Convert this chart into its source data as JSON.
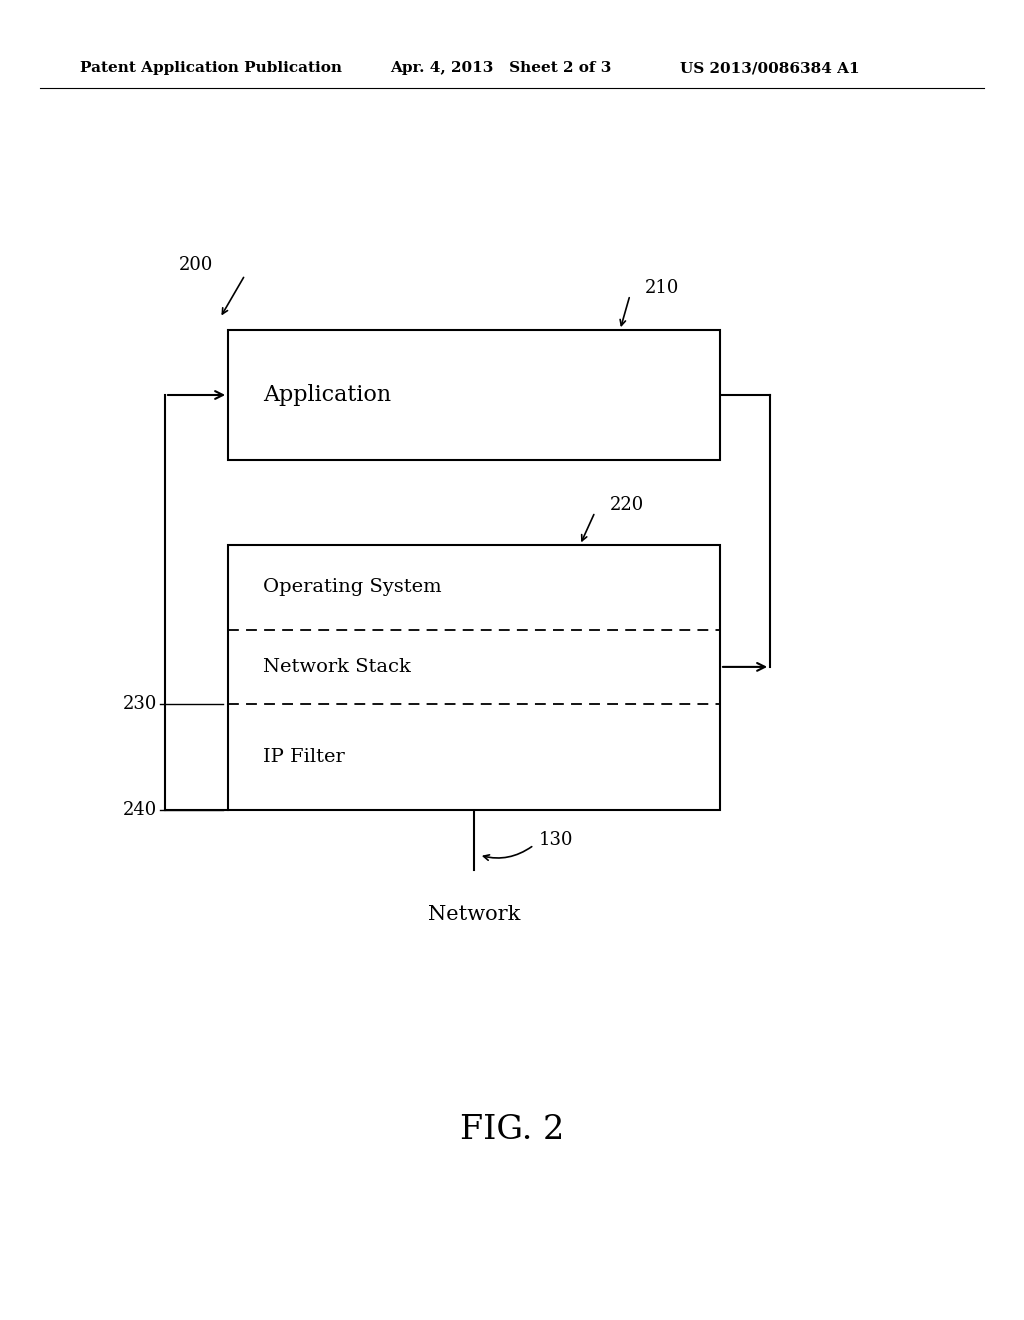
{
  "bg_color": "#ffffff",
  "header_left": "Patent Application Publication",
  "header_mid": "Apr. 4, 2013   Sheet 2 of 3",
  "header_right": "US 2013/0086384 A1",
  "header_fontsize": 11,
  "fig_label": "FIG. 2",
  "fig_label_fontsize": 24,
  "label_200": "200",
  "label_210": "210",
  "label_220": "220",
  "label_230": "230",
  "label_240": "240",
  "label_130": "130",
  "text_application": "Application",
  "text_os": "Operating System",
  "text_ns": "Network Stack",
  "text_ipf": "IP Filter",
  "text_network": "Network",
  "text_fontsize": 14,
  "ref_fontsize": 13
}
